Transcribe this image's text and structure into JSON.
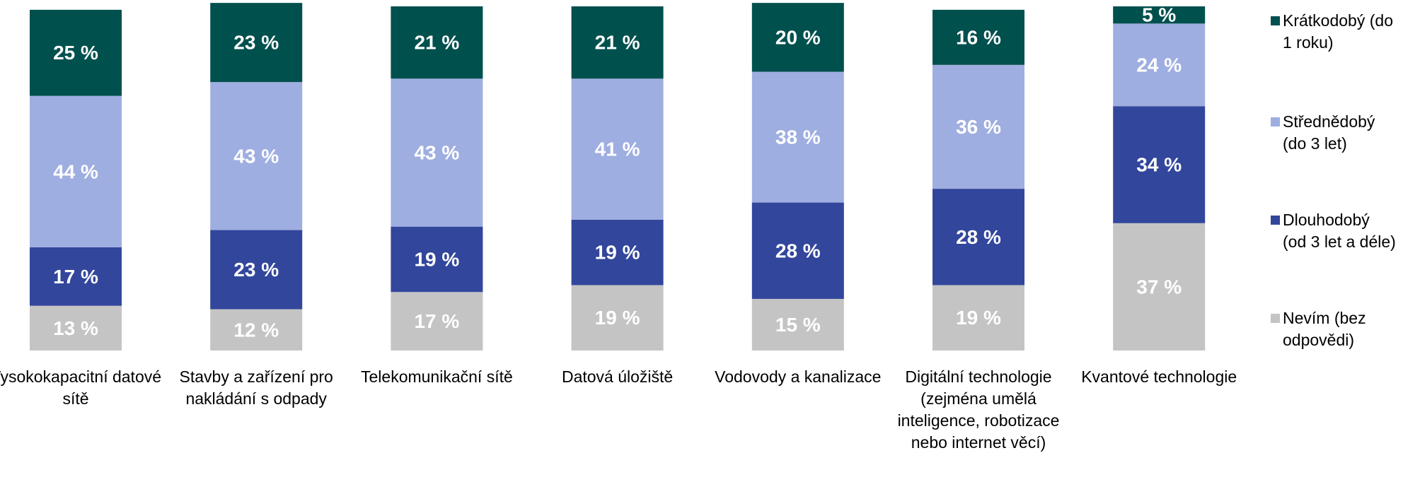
{
  "chart_data": {
    "type": "stacked-bar",
    "categories": [
      "Vysokokapacitní datové sítě",
      "Stavby a zařízení pro nakládání s odpady",
      "Telekomunikační sítě",
      "Datová úložiště",
      "Vodovody a kanalizace",
      "Digitální technologie (zejména umělá inteligence, robotizace nebo internet věcí)",
      "Kvantové technologie"
    ],
    "series": [
      {
        "name": "Krátkodobý (do 1 roku)",
        "color": "#00504e",
        "values": [
          25,
          23,
          21,
          21,
          20,
          16,
          5
        ],
        "value_labels": [
          "25 %",
          "23 %",
          "21 %",
          "21 %",
          "20 %",
          "16 %",
          "5 %"
        ]
      },
      {
        "name": "Střednědobý (do 3 let)",
        "color": "#9faee0",
        "values": [
          44,
          43,
          43,
          41,
          38,
          36,
          24
        ],
        "value_labels": [
          "44 %",
          "43 %",
          "43 %",
          "41 %",
          "38 %",
          "36 %",
          "24 %"
        ]
      },
      {
        "name": "Dlouhodobý (od 3 let a déle)",
        "color": "#32469c",
        "values": [
          17,
          23,
          19,
          19,
          28,
          28,
          34
        ],
        "value_labels": [
          "17 %",
          "23 %",
          "19 %",
          "19 %",
          "28 %",
          "28 %",
          "34 %"
        ]
      },
      {
        "name": "Nevím (bez odpovědi)",
        "color": "#c4c4c4",
        "values": [
          13,
          12,
          17,
          19,
          15,
          19,
          37
        ],
        "value_labels": [
          "13 %",
          "12 %",
          "17 %",
          "19 %",
          "15 %",
          "19 %",
          "37 %"
        ]
      }
    ],
    "ylim": [
      0,
      100
    ],
    "legend": "right"
  }
}
